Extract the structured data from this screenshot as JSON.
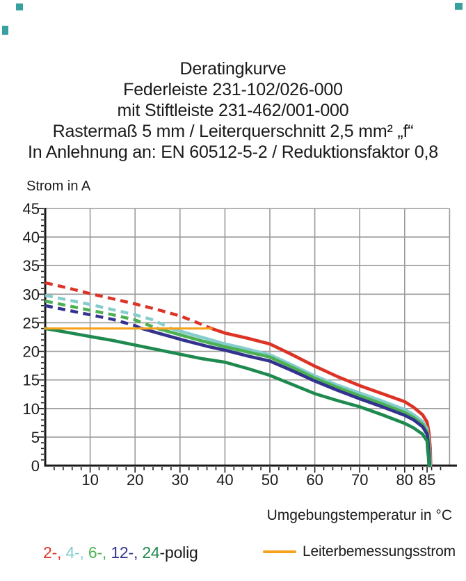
{
  "title": {
    "lines": [
      "Deratingkurve",
      "Federleiste 231-102/026-000",
      "mit Stiftleiste 231-462/001-000",
      "Rastermaß 5 mm / Leiterquerschnitt 2,5 mm² „f“",
      "In Anlehnung an: EN 60512-5-2 / Reduktionsfaktor 0,8"
    ]
  },
  "chart": {
    "y_axis_title": "Strom in A",
    "x_axis_title": "Umgebungstemperatur in °C",
    "grid_color": "#9b9b9b",
    "axis_color": "#1a1a1a",
    "background": "#ffffff"
  },
  "chart_data": {
    "type": "line",
    "title": "Deratingkurve",
    "xlabel": "Umgebungstemperatur in °C",
    "ylabel": "Strom in A",
    "xlim": [
      0,
      90
    ],
    "ylim": [
      0,
      45
    ],
    "grid": true,
    "x_ticks": [
      10,
      20,
      30,
      40,
      50,
      60,
      70,
      80,
      85
    ],
    "y_ticks": [
      0,
      5,
      10,
      15,
      20,
      25,
      30,
      35,
      40,
      45
    ],
    "x_gridlines": [
      10,
      20,
      30,
      40,
      50,
      60,
      70,
      80,
      90
    ],
    "y_gridlines": [
      5,
      10,
      15,
      20,
      25,
      30,
      35,
      40,
      45
    ],
    "rated_current_A": 24,
    "rated_line": {
      "name": "Leiterbemessungsstrom",
      "color": "#f6a21f",
      "points": [
        [
          0,
          24
        ],
        [
          37,
          24
        ]
      ]
    },
    "series": [
      {
        "name": "2-polig",
        "color": "#dd3327",
        "dashed_points": [
          [
            0,
            32
          ],
          [
            5,
            31.1
          ],
          [
            10,
            30.1
          ],
          [
            15,
            29.2
          ],
          [
            20,
            28.3
          ],
          [
            25,
            27.3
          ],
          [
            30,
            26.2
          ],
          [
            33,
            25.3
          ],
          [
            37,
            24
          ]
        ],
        "solid_points": [
          [
            37,
            24
          ],
          [
            40,
            23.2
          ],
          [
            45,
            22.3
          ],
          [
            50,
            21.3
          ],
          [
            55,
            19.4
          ],
          [
            60,
            17.4
          ],
          [
            65,
            15.6
          ],
          [
            70,
            14
          ],
          [
            75,
            12.6
          ],
          [
            80,
            11.2
          ],
          [
            82,
            10.2
          ],
          [
            84,
            8.9
          ],
          [
            85,
            7.6
          ],
          [
            85.4,
            5.8
          ],
          [
            85.7,
            3
          ],
          [
            85.8,
            0
          ]
        ]
      },
      {
        "name": "4-polig",
        "color": "#85cdcd",
        "dashed_points": [
          [
            0,
            29.8
          ],
          [
            5,
            29
          ],
          [
            10,
            28.2
          ],
          [
            15,
            27.3
          ],
          [
            20,
            26.4
          ],
          [
            24,
            25.5
          ],
          [
            28,
            24
          ]
        ],
        "solid_points": [
          [
            28,
            24
          ],
          [
            32,
            23.1
          ],
          [
            36,
            22.2
          ],
          [
            40,
            21.3
          ],
          [
            45,
            20.4
          ],
          [
            50,
            19.4
          ],
          [
            55,
            17.6
          ],
          [
            60,
            15.7
          ],
          [
            65,
            14.1
          ],
          [
            70,
            12.7
          ],
          [
            75,
            11.3
          ],
          [
            80,
            9.8
          ],
          [
            82,
            8.9
          ],
          [
            84,
            7.7
          ],
          [
            85,
            6.4
          ],
          [
            85.3,
            4.8
          ],
          [
            85.6,
            2.5
          ],
          [
            85.7,
            0
          ]
        ]
      },
      {
        "name": "6-polig",
        "color": "#4cb152",
        "dashed_points": [
          [
            0,
            28.8
          ],
          [
            5,
            28
          ],
          [
            10,
            27.2
          ],
          [
            15,
            26.4
          ],
          [
            20,
            25.5
          ],
          [
            25,
            24
          ]
        ],
        "solid_points": [
          [
            25,
            24
          ],
          [
            30,
            22.9
          ],
          [
            35,
            21.8
          ],
          [
            40,
            20.8
          ],
          [
            45,
            19.9
          ],
          [
            50,
            19
          ],
          [
            55,
            17.2
          ],
          [
            60,
            15.3
          ],
          [
            65,
            13.7
          ],
          [
            70,
            12.2
          ],
          [
            75,
            10.8
          ],
          [
            80,
            9.3
          ],
          [
            82,
            8.4
          ],
          [
            84,
            7.2
          ],
          [
            85,
            5.9
          ],
          [
            85.3,
            4.4
          ],
          [
            85.5,
            2.2
          ],
          [
            85.6,
            0
          ]
        ]
      },
      {
        "name": "12-polig",
        "color": "#33338f",
        "dashed_points": [
          [
            0,
            28
          ],
          [
            5,
            27.2
          ],
          [
            10,
            26.4
          ],
          [
            15,
            25.6
          ],
          [
            20,
            24.5
          ],
          [
            21.5,
            24
          ]
        ],
        "solid_points": [
          [
            21.5,
            24
          ],
          [
            26,
            23
          ],
          [
            31,
            21.9
          ],
          [
            36,
            20.9
          ],
          [
            40,
            20.2
          ],
          [
            45,
            19.2
          ],
          [
            50,
            18.3
          ],
          [
            55,
            16.6
          ],
          [
            60,
            14.8
          ],
          [
            65,
            13.2
          ],
          [
            70,
            11.7
          ],
          [
            75,
            10.3
          ],
          [
            80,
            8.8
          ],
          [
            82,
            8
          ],
          [
            84,
            6.8
          ],
          [
            85,
            5.5
          ],
          [
            85.2,
            4
          ],
          [
            85.4,
            2
          ],
          [
            85.5,
            0
          ]
        ]
      },
      {
        "name": "24-polig",
        "color": "#1f8a4f",
        "dashed_points": [],
        "solid_points": [
          [
            0,
            24
          ],
          [
            5,
            23.3
          ],
          [
            10,
            22.6
          ],
          [
            15,
            21.9
          ],
          [
            20,
            21.1
          ],
          [
            25,
            20.3
          ],
          [
            30,
            19.5
          ],
          [
            35,
            18.7
          ],
          [
            40,
            18.1
          ],
          [
            45,
            17
          ],
          [
            50,
            15.8
          ],
          [
            55,
            14.2
          ],
          [
            60,
            12.6
          ],
          [
            65,
            11.4
          ],
          [
            70,
            10.3
          ],
          [
            75,
            8.9
          ],
          [
            80,
            7.4
          ],
          [
            82,
            6.6
          ],
          [
            84,
            5.5
          ],
          [
            85,
            4.3
          ],
          [
            85.1,
            3
          ],
          [
            85.3,
            1.5
          ],
          [
            85.4,
            0
          ]
        ]
      }
    ],
    "legend_position": "bottom"
  },
  "legend": {
    "items": [
      {
        "label": "2-, ",
        "color": "#dd3327"
      },
      {
        "label": "4-, ",
        "color": "#85cdcd"
      },
      {
        "label": "6-, ",
        "color": "#4cb152"
      },
      {
        "label": "12-, ",
        "color": "#33338f"
      },
      {
        "label": "24",
        "color": "#1f8a4f"
      }
    ],
    "suffix": "-polig",
    "rated_label": "Leiterbemessungsstrom",
    "rated_color": "#f6a21f"
  }
}
